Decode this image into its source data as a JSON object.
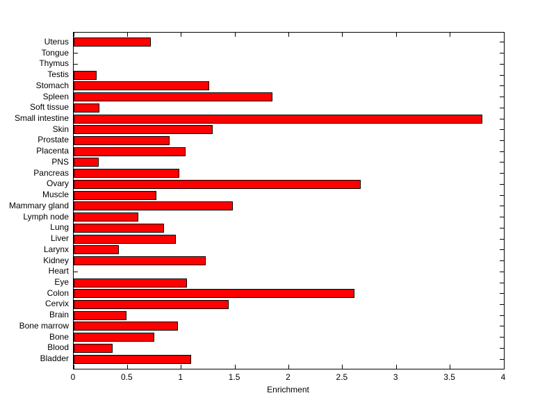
{
  "chart_data": {
    "type": "bar",
    "orientation": "horizontal",
    "title": "",
    "xlabel": "Enrichment",
    "ylabel": "",
    "xlim": [
      0,
      4
    ],
    "xticks": [
      "0",
      "0.5",
      "1",
      "1.5",
      "2",
      "2.5",
      "3",
      "3.5",
      "4"
    ],
    "grid": false,
    "legend": "none",
    "bar_color": "#FF0000",
    "bar_edge_color": "#000000",
    "axis_color": "#000000",
    "background_color": "#FFFFFF",
    "categories": [
      "Uterus",
      "Tongue",
      "Thymus",
      "Testis",
      "Stomach",
      "Spleen",
      "Soft tissue",
      "Small intestine",
      "Skin",
      "Prostate",
      "Placenta",
      "PNS",
      "Pancreas",
      "Ovary",
      "Muscle",
      "Mammary gland",
      "Lymph node",
      "Lung",
      "Liver",
      "Larynx",
      "Kidney",
      "Heart",
      "Eye",
      "Colon",
      "Cervix",
      "Brain",
      "Bone marrow",
      "Bone",
      "Blood",
      "Bladder"
    ],
    "values": [
      0.72,
      0,
      0,
      0.21,
      1.26,
      1.85,
      0.24,
      3.8,
      1.29,
      0.89,
      1.04,
      0.23,
      0.98,
      2.67,
      0.77,
      1.48,
      0.6,
      0.84,
      0.95,
      0.42,
      1.23,
      0,
      1.05,
      2.61,
      1.44,
      0.49,
      0.97,
      0.75,
      0.36,
      1.09
    ]
  }
}
